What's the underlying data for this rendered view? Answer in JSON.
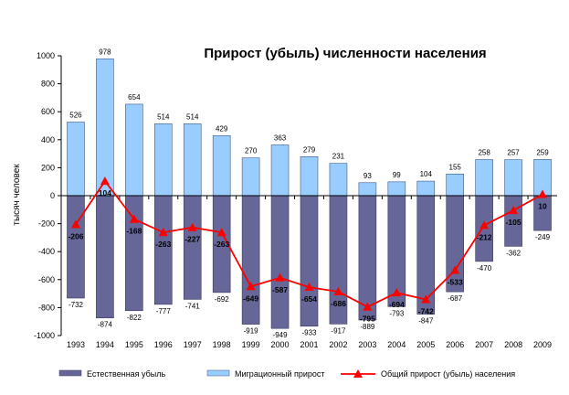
{
  "chart_data": {
    "type": "bar",
    "title": "Прирост (убыль) численности населения",
    "ylabel": "тысяч человек",
    "xlabel": "",
    "ylim": [
      -1000,
      1000
    ],
    "ytick_step": 200,
    "grid": false,
    "legend_position": "bottom",
    "categories": [
      "1993",
      "1994",
      "1995",
      "1996",
      "1997",
      "1998",
      "1999",
      "2000",
      "2001",
      "2002",
      "2003",
      "2004",
      "2005",
      "2006",
      "2007",
      "2008",
      "2009"
    ],
    "series": [
      {
        "name": "Естественная убыль",
        "kind": "bar",
        "color": "#666699",
        "values": [
          -732,
          -874,
          -822,
          -777,
          -741,
          -692,
          -919,
          -949,
          -933,
          -917,
          -889,
          -793,
          -847,
          -687,
          -470,
          -362,
          -249
        ]
      },
      {
        "name": "Миграционный прирост",
        "kind": "bar",
        "color": "#99CCFF",
        "values": [
          526,
          978,
          654,
          514,
          514,
          429,
          270,
          363,
          279,
          231,
          93,
          99,
          104,
          155,
          258,
          257,
          259
        ]
      },
      {
        "name": "Общий прирост (убыль) населения",
        "kind": "line",
        "color": "#FF0000",
        "values": [
          -206,
          104,
          -168,
          -263,
          -227,
          -263,
          -649,
          -587,
          -654,
          -686,
          -795,
          -694,
          -742,
          -533,
          -212,
          -105,
          10
        ]
      }
    ]
  }
}
